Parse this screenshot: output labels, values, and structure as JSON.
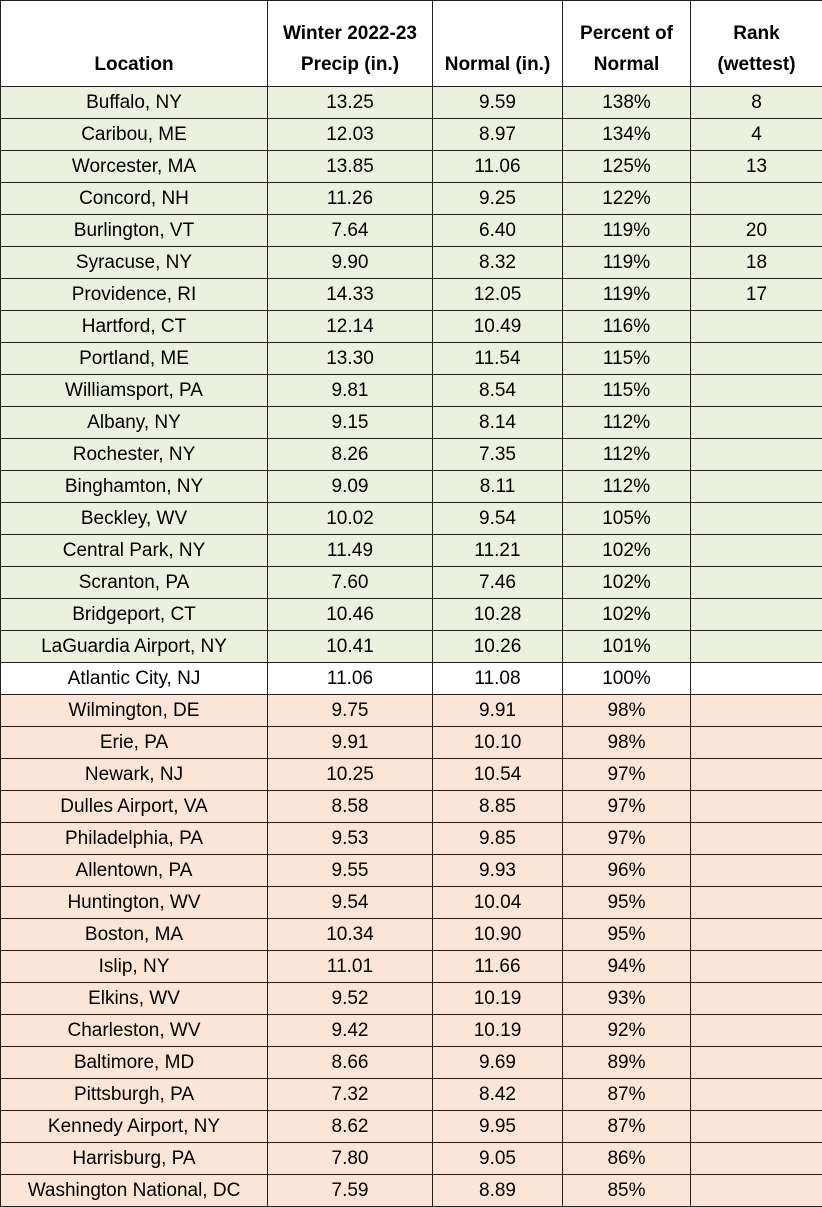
{
  "table": {
    "header": [
      [
        "Location"
      ],
      [
        "Winter 2022-23",
        "Precip (in.)"
      ],
      [
        "Normal (in.)"
      ],
      [
        "Percent of",
        "Normal"
      ],
      [
        "Rank",
        "(wettest)"
      ]
    ],
    "rows": [
      [
        "Buffalo, NY",
        "13.25",
        "9.59",
        "138%",
        "8"
      ],
      [
        "Caribou, ME",
        "12.03",
        "8.97",
        "134%",
        "4"
      ],
      [
        "Worcester, MA",
        "13.85",
        "11.06",
        "125%",
        "13"
      ],
      [
        "Concord, NH",
        "11.26",
        "9.25",
        "122%",
        null
      ],
      [
        "Burlington, VT",
        "7.64",
        "6.40",
        "119%",
        "20"
      ],
      [
        "Syracuse, NY",
        "9.90",
        "8.32",
        "119%",
        "18"
      ],
      [
        "Providence, RI",
        "14.33",
        "12.05",
        "119%",
        "17"
      ],
      [
        "Hartford, CT",
        "12.14",
        "10.49",
        "116%",
        null
      ],
      [
        "Portland, ME",
        "13.30",
        "11.54",
        "115%",
        null
      ],
      [
        "Williamsport, PA",
        "9.81",
        "8.54",
        "115%",
        null
      ],
      [
        "Albany, NY",
        "9.15",
        "8.14",
        "112%",
        null
      ],
      [
        "Rochester, NY",
        "8.26",
        "7.35",
        "112%",
        null
      ],
      [
        "Binghamton, NY",
        "9.09",
        "8.11",
        "112%",
        null
      ],
      [
        "Beckley, WV",
        "10.02",
        "9.54",
        "105%",
        null
      ],
      [
        "Central Park, NY",
        "11.49",
        "11.21",
        "102%",
        null
      ],
      [
        "Scranton, PA",
        "7.60",
        "7.46",
        "102%",
        null
      ],
      [
        "Bridgeport, CT",
        "10.46",
        "10.28",
        "102%",
        null
      ],
      [
        "LaGuardia Airport, NY",
        "10.41",
        "10.26",
        "101%",
        null
      ],
      [
        "Atlantic City, NJ",
        "11.06",
        "11.08",
        "100%",
        null
      ],
      [
        "Wilmington, DE",
        "9.75",
        "9.91",
        "98%",
        null
      ],
      [
        "Erie, PA",
        "9.91",
        "10.10",
        "98%",
        null
      ],
      [
        "Newark, NJ",
        "10.25",
        "10.54",
        "97%",
        null
      ],
      [
        "Dulles Airport, VA",
        "8.58",
        "8.85",
        "97%",
        null
      ],
      [
        "Philadelphia, PA",
        "9.53",
        "9.85",
        "97%",
        null
      ],
      [
        "Allentown, PA",
        "9.55",
        "9.93",
        "96%",
        null
      ],
      [
        "Huntington, WV",
        "9.54",
        "10.04",
        "95%",
        null
      ],
      [
        "Boston, MA",
        "10.34",
        "10.90",
        "95%",
        null
      ],
      [
        "Islip, NY",
        "11.01",
        "11.66",
        "94%",
        null
      ],
      [
        "Elkins, WV",
        "9.52",
        "10.19",
        "93%",
        null
      ],
      [
        "Charleston, WV",
        "9.42",
        "10.19",
        "92%",
        null
      ],
      [
        "Baltimore, MD",
        "8.66",
        "9.69",
        "89%",
        null
      ],
      [
        "Pittsburgh, PA",
        "7.32",
        "8.42",
        "87%",
        null
      ],
      [
        "Kennedy Airport, NY",
        "8.62",
        "9.95",
        "87%",
        null
      ],
      [
        "Harrisburg, PA",
        "7.80",
        "9.05",
        "86%",
        null
      ],
      [
        "Washington National, DC",
        "7.59",
        "8.89",
        "85%",
        null
      ]
    ]
  }
}
